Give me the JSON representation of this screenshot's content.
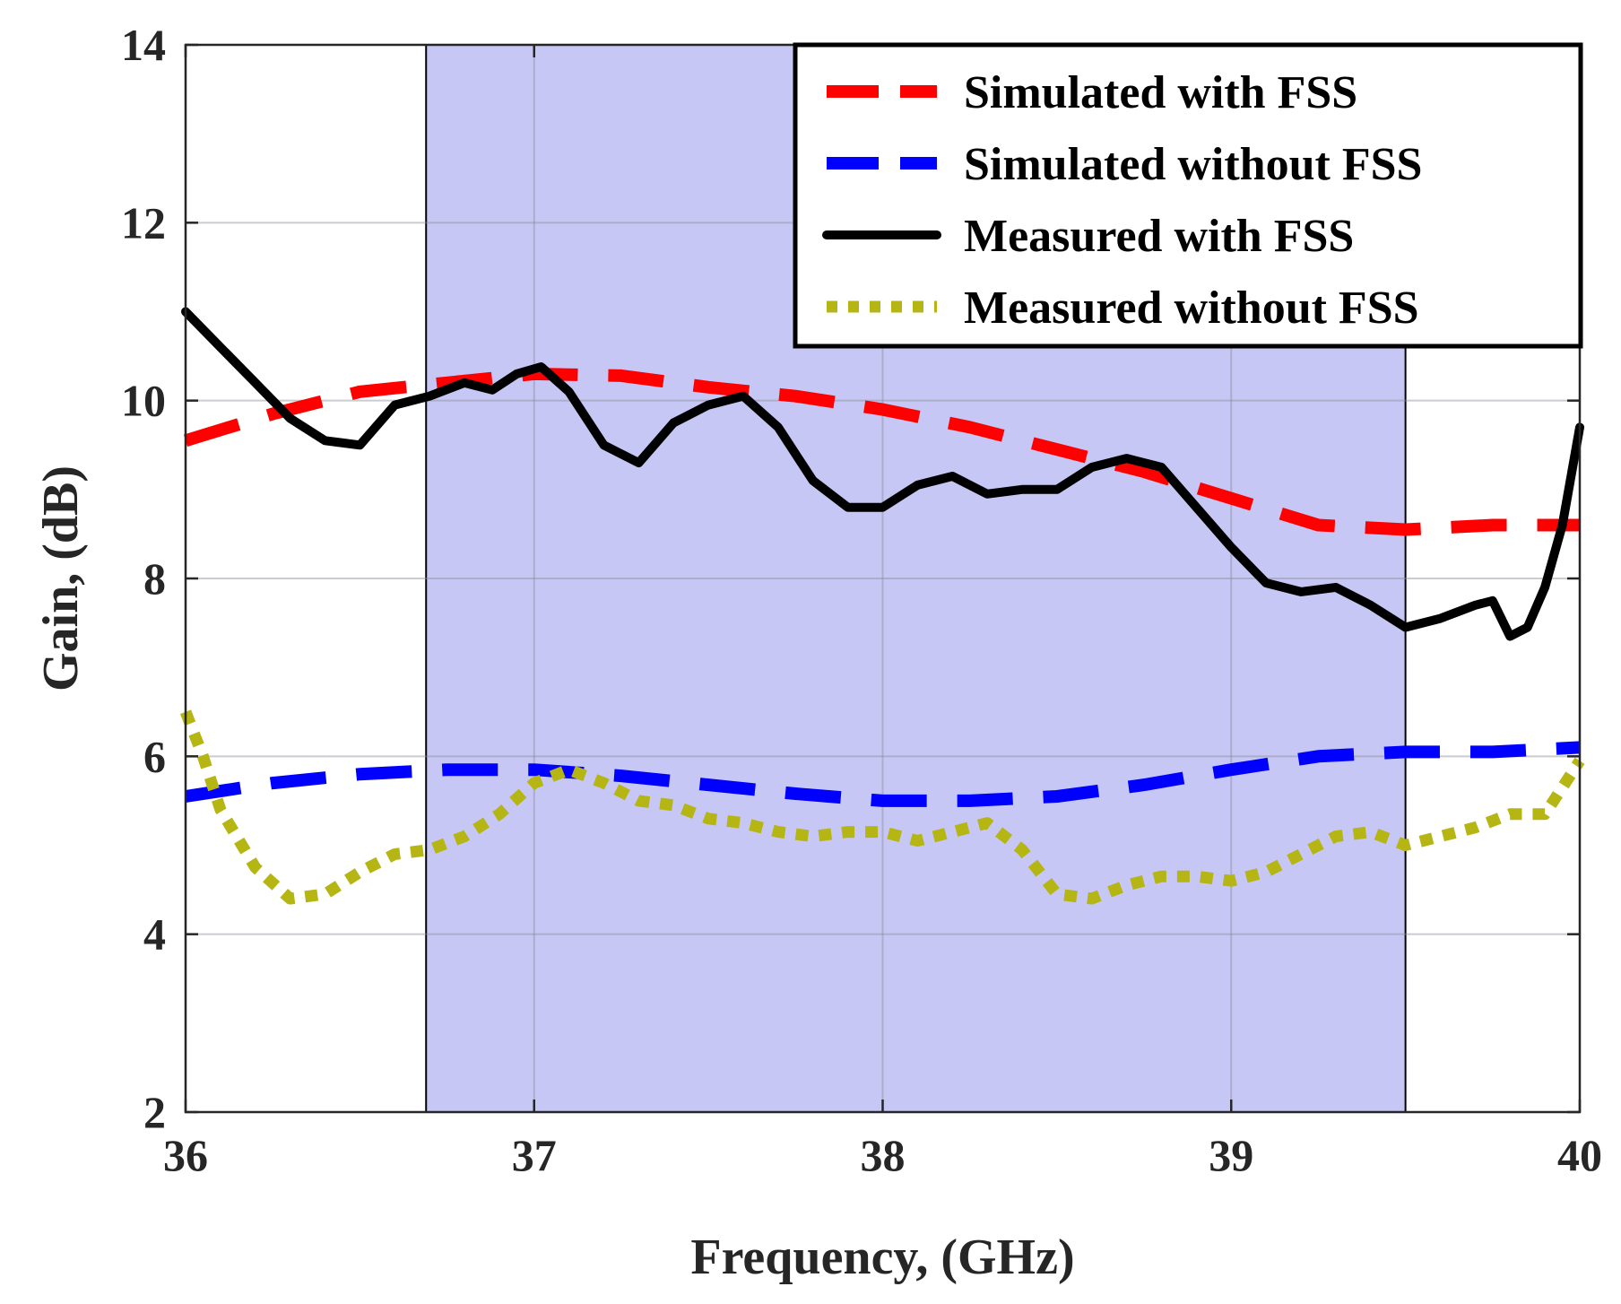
{
  "chart_data": {
    "type": "line",
    "title": "",
    "xlabel": "Frequency, (GHz)",
    "ylabel": "Gain, (dB)",
    "xlim": [
      36,
      40
    ],
    "ylim": [
      2,
      14
    ],
    "xticks": [
      36,
      37,
      38,
      39,
      40
    ],
    "yticks": [
      2,
      4,
      6,
      8,
      10,
      12,
      14
    ],
    "grid": true,
    "legend_position": "top-right",
    "shaded_band": {
      "x_start": 36.69,
      "x_end": 39.5,
      "color": "#c7c7f5"
    },
    "series": [
      {
        "name": "Simulated with FSS",
        "color": "#ff0000",
        "style": "dashed",
        "x": [
          36.0,
          36.25,
          36.5,
          36.75,
          37.0,
          37.25,
          37.5,
          37.75,
          38.0,
          38.25,
          38.5,
          38.75,
          39.0,
          39.25,
          39.5,
          39.75,
          40.0
        ],
        "y": [
          9.55,
          9.85,
          10.1,
          10.2,
          10.3,
          10.28,
          10.15,
          10.05,
          9.9,
          9.7,
          9.45,
          9.2,
          8.9,
          8.6,
          8.55,
          8.6,
          8.6
        ]
      },
      {
        "name": "Simulated without FSS",
        "color": "#0000ff",
        "style": "dashed",
        "x": [
          36.0,
          36.25,
          36.5,
          36.75,
          37.0,
          37.25,
          37.5,
          37.75,
          38.0,
          38.25,
          38.5,
          38.75,
          39.0,
          39.25,
          39.5,
          39.75,
          40.0
        ],
        "y": [
          5.55,
          5.7,
          5.8,
          5.85,
          5.85,
          5.78,
          5.68,
          5.58,
          5.5,
          5.5,
          5.55,
          5.68,
          5.85,
          6.0,
          6.05,
          6.05,
          6.1
        ]
      },
      {
        "name": "Measured with FSS",
        "color": "#000000",
        "style": "solid",
        "x": [
          36.0,
          36.1,
          36.2,
          36.3,
          36.4,
          36.5,
          36.6,
          36.7,
          36.8,
          36.88,
          36.95,
          37.02,
          37.1,
          37.2,
          37.3,
          37.4,
          37.5,
          37.6,
          37.7,
          37.8,
          37.9,
          38.0,
          38.1,
          38.2,
          38.3,
          38.4,
          38.5,
          38.6,
          38.7,
          38.8,
          38.9,
          39.0,
          39.1,
          39.2,
          39.3,
          39.4,
          39.5,
          39.6,
          39.7,
          39.75,
          39.8,
          39.85,
          39.9,
          39.95,
          40.0
        ],
        "y": [
          11.0,
          10.6,
          10.2,
          9.8,
          9.55,
          9.5,
          9.95,
          10.05,
          10.2,
          10.12,
          10.3,
          10.38,
          10.1,
          9.5,
          9.3,
          9.75,
          9.95,
          10.05,
          9.7,
          9.1,
          8.8,
          8.8,
          9.05,
          9.15,
          8.95,
          9.0,
          9.0,
          9.25,
          9.35,
          9.25,
          8.8,
          8.35,
          7.95,
          7.85,
          7.9,
          7.7,
          7.45,
          7.55,
          7.7,
          7.75,
          7.35,
          7.45,
          7.9,
          8.6,
          9.7
        ]
      },
      {
        "name": "Measured without FSS",
        "color": "#b5b514",
        "style": "dotted",
        "x": [
          36.0,
          36.05,
          36.1,
          36.2,
          36.3,
          36.4,
          36.5,
          36.6,
          36.7,
          36.8,
          36.9,
          37.0,
          37.1,
          37.2,
          37.3,
          37.4,
          37.5,
          37.6,
          37.7,
          37.8,
          37.9,
          38.0,
          38.1,
          38.2,
          38.3,
          38.4,
          38.5,
          38.6,
          38.7,
          38.8,
          38.9,
          39.0,
          39.1,
          39.2,
          39.3,
          39.4,
          39.5,
          39.6,
          39.7,
          39.8,
          39.9,
          40.0
        ],
        "y": [
          6.5,
          6.0,
          5.4,
          4.75,
          4.4,
          4.45,
          4.7,
          4.9,
          4.95,
          5.1,
          5.35,
          5.7,
          5.85,
          5.7,
          5.5,
          5.45,
          5.3,
          5.25,
          5.15,
          5.1,
          5.15,
          5.15,
          5.05,
          5.15,
          5.25,
          4.95,
          4.45,
          4.4,
          4.55,
          4.65,
          4.65,
          4.6,
          4.7,
          4.9,
          5.1,
          5.15,
          5.0,
          5.1,
          5.2,
          5.35,
          5.35,
          5.95
        ]
      }
    ]
  }
}
